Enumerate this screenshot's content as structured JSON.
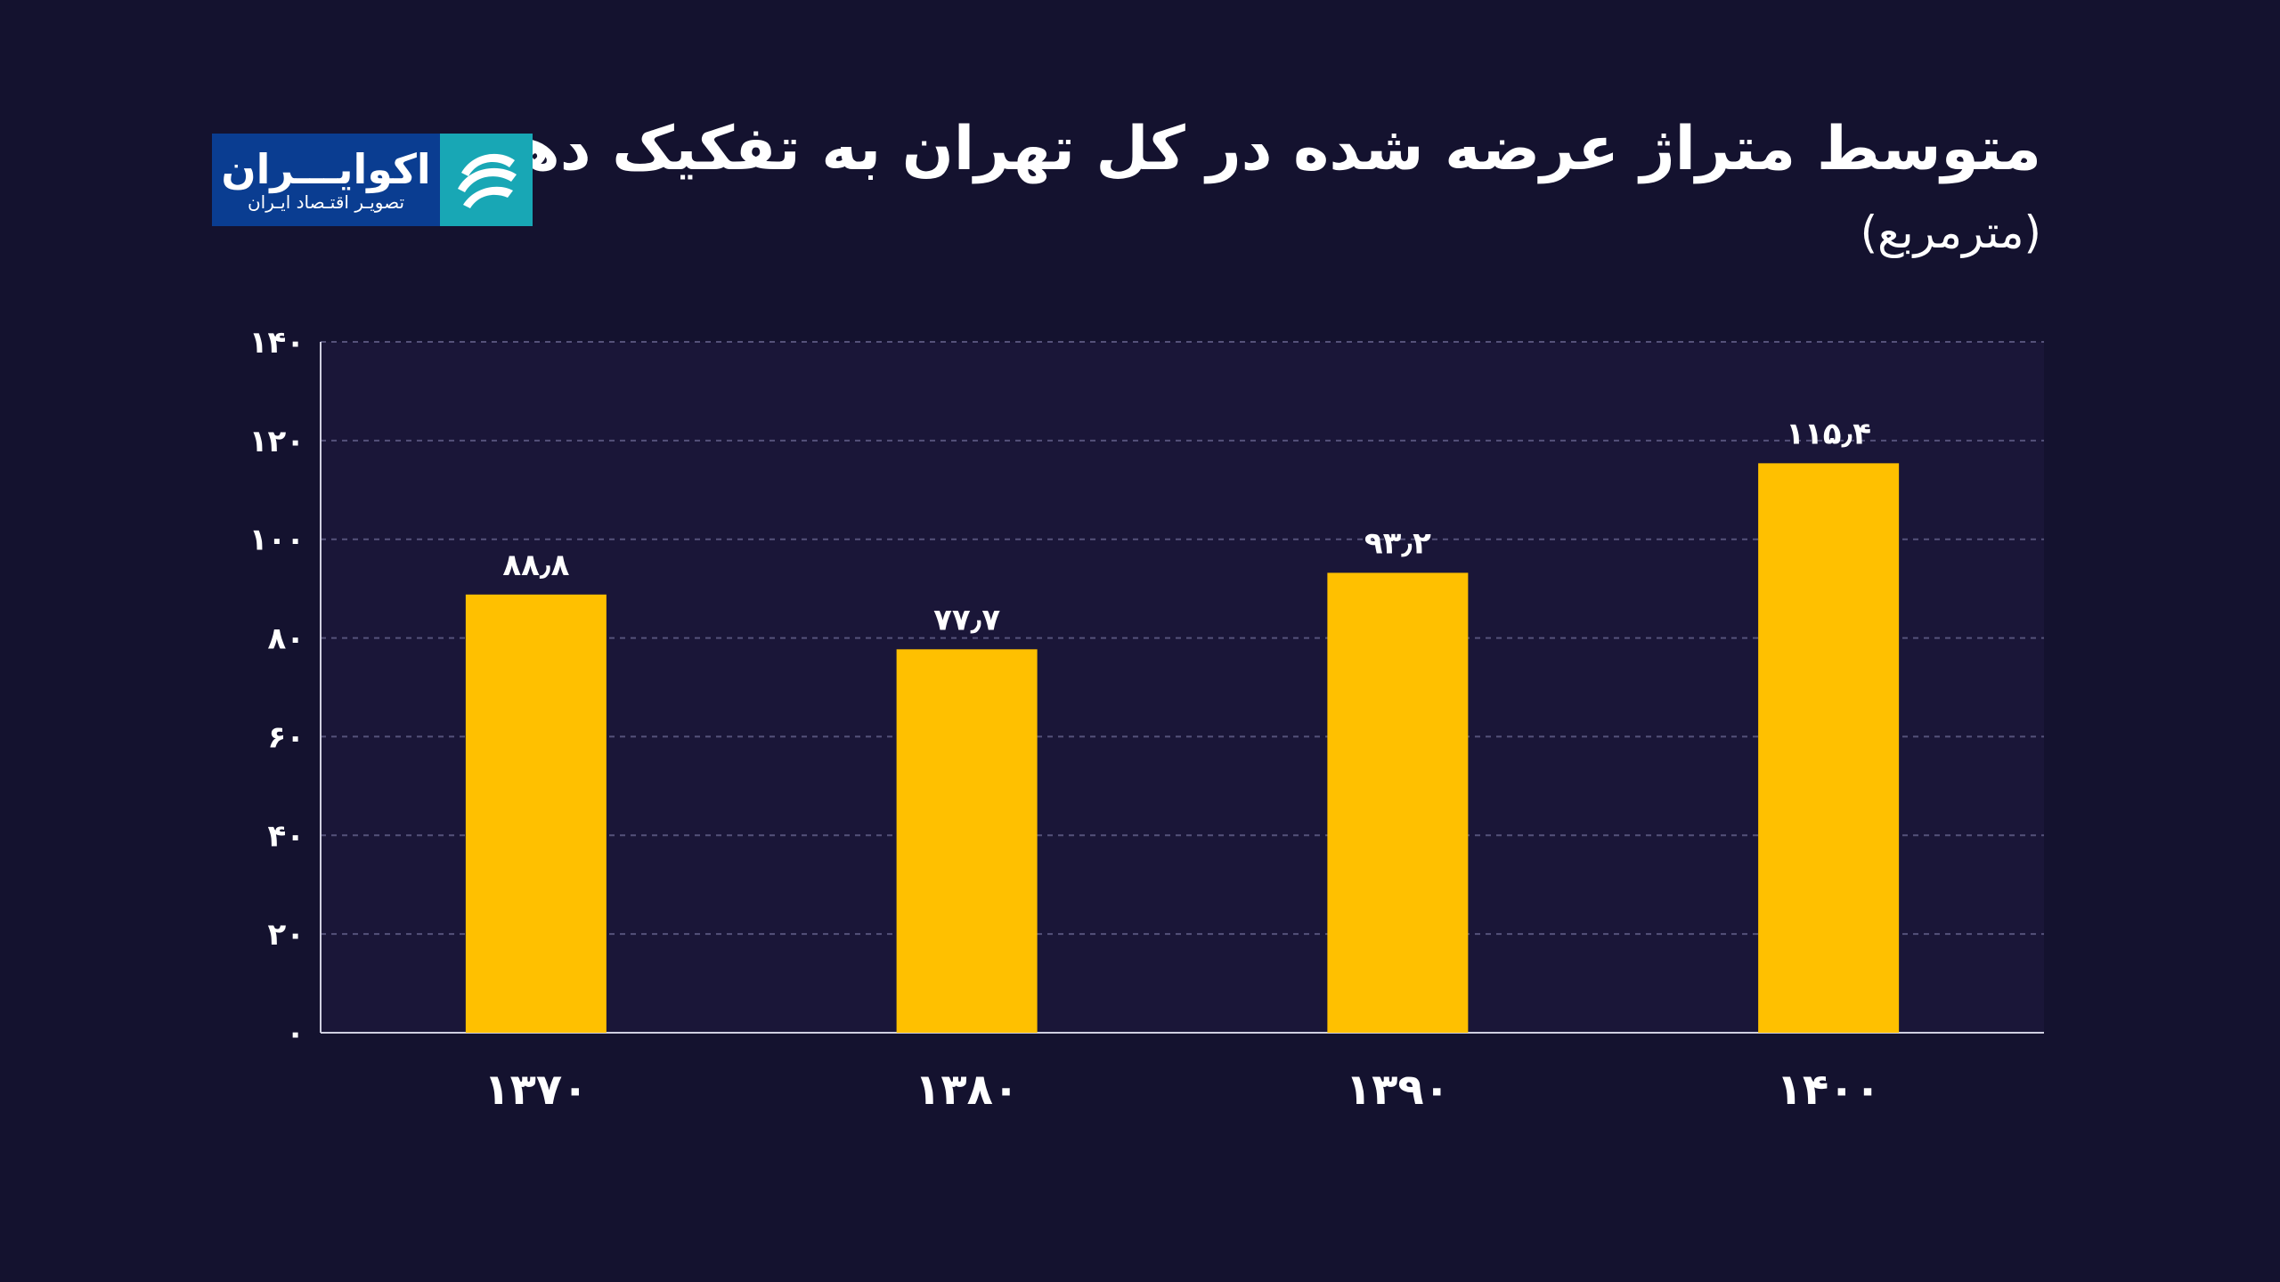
{
  "header": {
    "title": "متوسط متراژ عرضه شده در کل تهران به تفکیک دهه",
    "subtitle": "(مترمربع)"
  },
  "logo": {
    "name": "اکوایـــران",
    "tagline": "تصویـر اقتـصاد ایـران",
    "icon": "ecoiran-swirl-icon",
    "colors": {
      "background": "#0a3d91",
      "mark": "#18a7b5"
    }
  },
  "colors": {
    "background": "#14122f",
    "plot_background": "#1a1638",
    "bar": "#ffc000",
    "grid": "#55527a",
    "axis": "#cfcfe0",
    "text": "#ffffff"
  },
  "chart_data": {
    "type": "bar",
    "categories": [
      "۱۳۷۰",
      "۱۳۸۰",
      "۱۳۹۰",
      "۱۴۰۰"
    ],
    "values": [
      88.8,
      77.7,
      93.2,
      115.4
    ],
    "value_labels": [
      "۸۸٫۸",
      "۷۷٫۷",
      "۹۳٫۲",
      "۱۱۵٫۴"
    ],
    "ylim": [
      0,
      140
    ],
    "yticks": [
      0,
      20,
      40,
      60,
      80,
      100,
      120,
      140
    ],
    "ytick_labels": [
      "۰",
      "۲۰",
      "۴۰",
      "۶۰",
      "۸۰",
      "۱۰۰",
      "۱۲۰",
      "۱۴۰"
    ],
    "title": "متوسط متراژ عرضه شده در کل تهران به تفکیک دهه",
    "ylabel": "(مترمربع)",
    "xlabel": "",
    "grid": true,
    "legend": "none"
  }
}
